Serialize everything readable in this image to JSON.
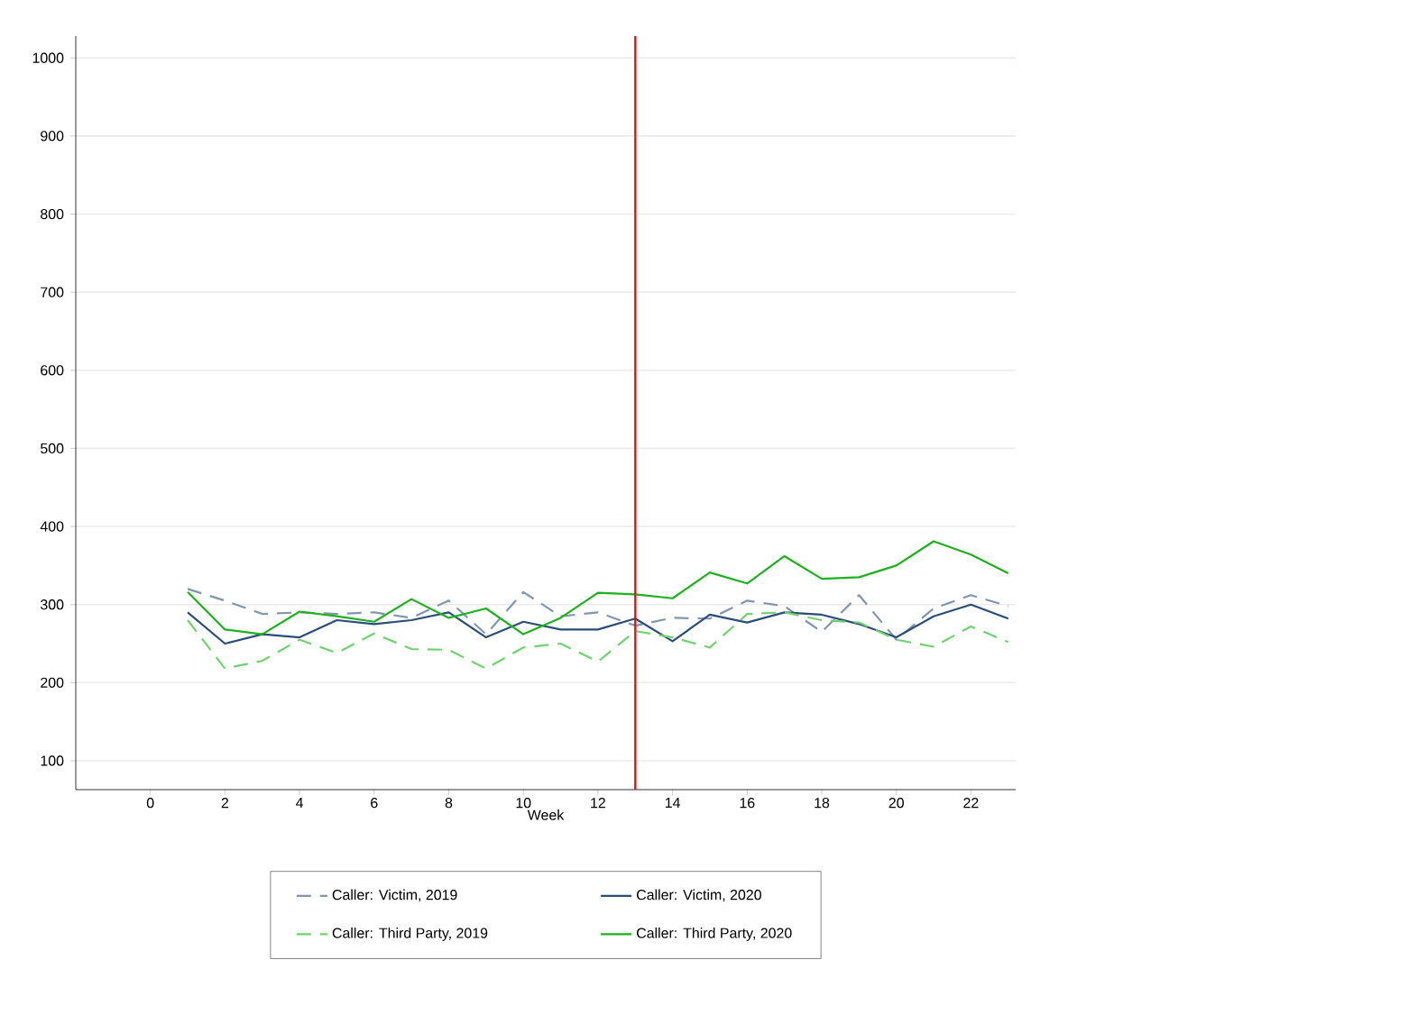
{
  "chart_data": {
    "type": "line",
    "xlabel": "Week",
    "x": [
      1,
      2,
      3,
      4,
      5,
      6,
      7,
      8,
      9,
      10,
      11,
      12,
      13,
      14,
      15,
      16,
      17,
      18,
      19,
      20,
      21,
      22,
      23
    ],
    "series": [
      {
        "name": "Caller: Victim, 2019",
        "color": "#8096b0",
        "line_style": "dashed",
        "values": [
          320,
          305,
          288,
          290,
          288,
          290,
          283,
          305,
          262,
          316,
          285,
          290,
          273,
          283,
          282,
          305,
          298,
          265,
          312,
          255,
          295,
          312,
          298
        ]
      },
      {
        "name": "Caller: Victim, 2020",
        "color": "#2a4d7a",
        "line_style": "solid",
        "values": [
          290,
          250,
          262,
          258,
          280,
          275,
          280,
          290,
          258,
          278,
          268,
          268,
          282,
          253,
          287,
          277,
          290,
          287,
          275,
          258,
          285,
          300,
          282
        ]
      },
      {
        "name": "Caller: Third Party, 2019",
        "color": "#6fd36f",
        "line_style": "dashed",
        "values": [
          280,
          218,
          228,
          255,
          238,
          263,
          243,
          242,
          218,
          245,
          250,
          227,
          266,
          258,
          245,
          288,
          290,
          280,
          277,
          255,
          246,
          272,
          252
        ]
      },
      {
        "name": "Caller: Third Party, 2020",
        "color": "#1db21d",
        "line_style": "solid",
        "values": [
          316,
          268,
          262,
          291,
          285,
          278,
          307,
          283,
          295,
          262,
          283,
          315,
          313,
          308,
          341,
          327,
          362,
          333,
          335,
          350,
          381,
          364,
          340
        ]
      }
    ],
    "xlim": [
      -2,
      23.2
    ],
    "ylim": [
      63,
      1028
    ],
    "xticks": [
      0,
      2,
      4,
      6,
      8,
      10,
      12,
      14,
      16,
      18,
      20,
      22
    ],
    "yticks": [
      100,
      200,
      300,
      400,
      500,
      600,
      700,
      800,
      900,
      1000
    ],
    "ref_lines": [
      {
        "axis": "x",
        "value": 13,
        "color": "#ff0000"
      }
    ],
    "grid": "y",
    "legend": "bottom",
    "marker": "none"
  }
}
